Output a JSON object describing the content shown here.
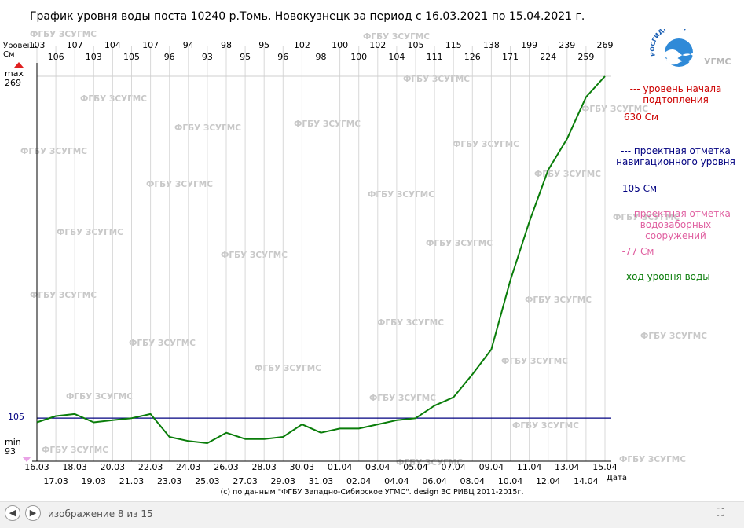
{
  "header": {
    "title": "График уровня воды поста 10240 р.Томь, Новокузнецк за период с 16.03.2021 по 15.04.2021 г."
  },
  "chart_data": {
    "type": "line",
    "y_axis_label": "Уровень См",
    "x_axis_label": "Дата",
    "max_label": "max",
    "max_value": "269",
    "min_label": "min",
    "min_value": "93",
    "reference_label": "105",
    "ylim": [
      93,
      269
    ],
    "x": [
      "16.03",
      "17.03",
      "18.03",
      "19.03",
      "20.03",
      "21.03",
      "22.03",
      "23.03",
      "24.03",
      "25.03",
      "26.03",
      "27.03",
      "28.03",
      "29.03",
      "30.03",
      "31.03",
      "01.04",
      "02.04",
      "03.04",
      "04.04",
      "05.04",
      "06.04",
      "07.04",
      "08.04",
      "09.04",
      "10.04",
      "11.04",
      "12.04",
      "13.04",
      "14.04",
      "15.04"
    ],
    "series": [
      {
        "name": "ход уровня воды",
        "color": "#0a7d0a",
        "values": [
          103,
          106,
          107,
          103,
          104,
          105,
          107,
          96,
          94,
          93,
          98,
          95,
          95,
          96,
          102,
          98,
          100,
          100,
          102,
          104,
          105,
          111,
          115,
          126,
          138,
          171,
          199,
          224,
          239,
          259,
          269
        ]
      }
    ],
    "reference_lines": [
      {
        "value": 105,
        "color": "#000080"
      }
    ],
    "grid": true
  },
  "legend": {
    "flood_label": "--- уровень начала подтопления",
    "flood_value": "630 См",
    "nav_label": "--- проектная отметка навигационного уровня",
    "nav_value": "105 См",
    "intake_label": "--- проектная отметка водозаборных сооружений",
    "intake_value": "-77 См",
    "water_label": "--- ход уровня воды"
  },
  "logo": {
    "arc_text": "РОСГИДРОМЕТ",
    "org": "УГМС"
  },
  "watermark": "ФГБУ ЗСУГМС",
  "colors": {
    "flood": "#cc0000",
    "nav": "#000080",
    "intake": "#e05fa0",
    "water": "#0a7d0a"
  },
  "footer": {
    "credit": "(с) по данным \"ФГБУ Западно-Сибирское УГМС\". design ЗС РИВЦ 2011-2015г."
  },
  "viewer": {
    "counter": "изображение 8 из 15",
    "prev_icon": "arrow-left-icon",
    "next_icon": "arrow-right-icon",
    "fullscreen_icon": "fullscreen-icon"
  }
}
